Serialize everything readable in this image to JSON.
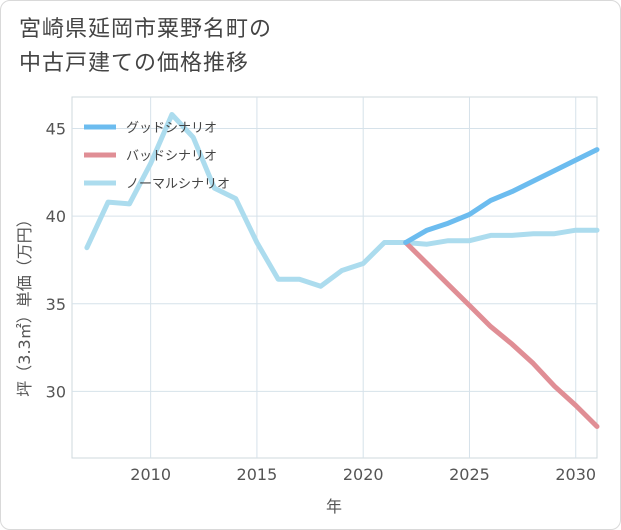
{
  "title_lines": [
    "宮崎県延岡市粟野名町の",
    "中古戸建ての価格推移"
  ],
  "chart_data": {
    "type": "line",
    "title": "宮崎県延岡市粟野名町の中古戸建ての価格推移",
    "xlabel": "年",
    "ylabel": "坪（3.3㎡）単価（万円）",
    "xlim": [
      2006.3,
      2031
    ],
    "ylim": [
      26.2,
      46.8
    ],
    "xticks": [
      2010,
      2015,
      2020,
      2025,
      2030
    ],
    "yticks": [
      30,
      35,
      40,
      45
    ],
    "grid": true,
    "legend_position": "top-left",
    "series": [
      {
        "name": "グッドシナリオ",
        "color": "#6cbcef",
        "x": [
          2022,
          2023,
          2024,
          2025,
          2026,
          2027,
          2028,
          2029,
          2030,
          2031
        ],
        "y": [
          38.5,
          39.2,
          39.6,
          40.1,
          40.9,
          41.4,
          42.0,
          42.6,
          43.2,
          43.8
        ]
      },
      {
        "name": "バッドシナリオ",
        "color": "#e08e95",
        "x": [
          2022,
          2023,
          2024,
          2025,
          2026,
          2027,
          2028,
          2029,
          2030,
          2031
        ],
        "y": [
          38.5,
          37.3,
          36.1,
          34.9,
          33.7,
          32.7,
          31.6,
          30.3,
          29.2,
          28.0
        ]
      },
      {
        "name": "ノーマルシナリオ",
        "color": "#acdcee",
        "x": [
          2007,
          2008,
          2009,
          2010,
          2011,
          2012,
          2013,
          2014,
          2015,
          2016,
          2017,
          2018,
          2019,
          2020,
          2021,
          2022,
          2023,
          2024,
          2025,
          2026,
          2027,
          2028,
          2029,
          2030,
          2031
        ],
        "y": [
          38.2,
          40.8,
          40.7,
          43.0,
          45.8,
          44.5,
          41.6,
          41.0,
          38.5,
          36.4,
          36.4,
          36.0,
          36.9,
          37.3,
          38.5,
          38.5,
          38.4,
          38.6,
          38.6,
          38.9,
          38.9,
          39.0,
          39.0,
          39.2,
          39.2
        ]
      }
    ]
  }
}
